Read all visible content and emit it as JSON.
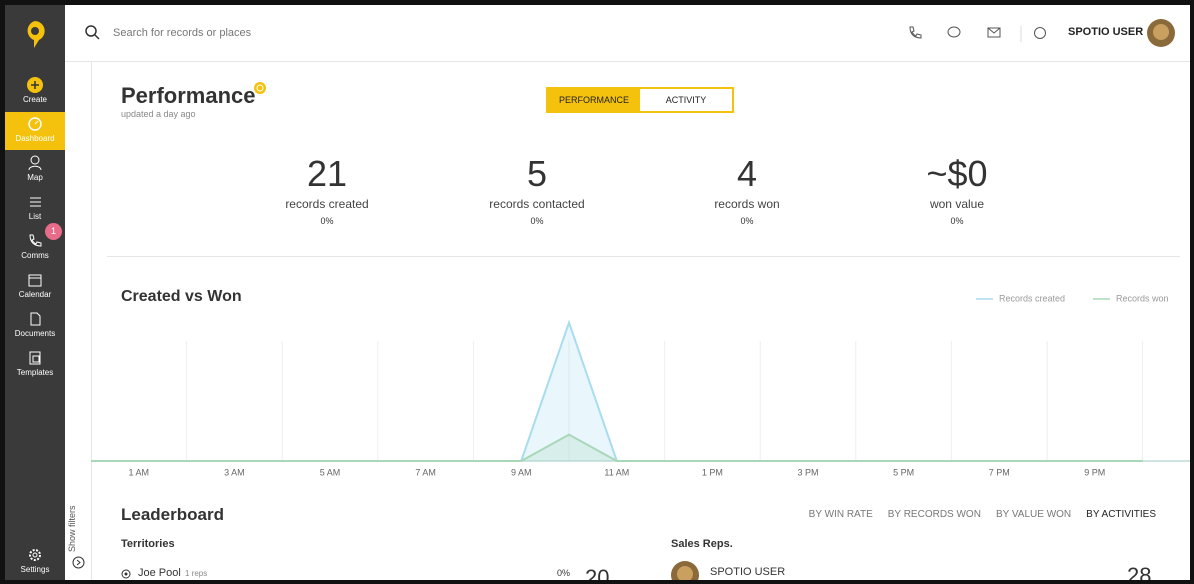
{
  "sidebar": {
    "items": [
      "Create",
      "Dashboard",
      "Map",
      "List",
      "Comms",
      "Calendar",
      "Documents",
      "Templates",
      "Settings"
    ],
    "comms_badge": "1"
  },
  "header": {
    "search_placeholder": "Search for records or places",
    "user": "SPOTIO USER"
  },
  "filters": "Show filters",
  "performance": {
    "title": "Performance",
    "updated": "updated a day ago",
    "tabs": [
      "PERFORMANCE",
      "ACTIVITY"
    ],
    "stats": [
      {
        "value": "21",
        "label": "records created",
        "change": "0%"
      },
      {
        "value": "5",
        "label": "records contacted",
        "change": "0%"
      },
      {
        "value": "4",
        "label": "records won",
        "change": "0%"
      },
      {
        "value": "~$0",
        "label": "won value",
        "change": "0%"
      }
    ]
  },
  "chart_data": {
    "type": "line",
    "title": "Created vs Won",
    "categories": [
      null,
      "1 AM",
      null,
      "3 AM",
      null,
      "5 AM",
      null,
      "7 AM",
      null,
      "9 AM",
      null,
      "11 AM",
      null,
      "1 PM",
      null,
      "3 PM",
      null,
      "5 PM",
      null,
      "7 PM",
      null,
      "9 PM",
      null
    ],
    "series": [
      {
        "name": "Records created",
        "color": "#a8dcee",
        "values": [
          0,
          0,
          0,
          0,
          0,
          0,
          0,
          0,
          0,
          0,
          21,
          0,
          0,
          0,
          0,
          0,
          0,
          0,
          0,
          0,
          0,
          0,
          0
        ]
      },
      {
        "name": "Records won",
        "color": "#a8d8b8",
        "values": [
          0,
          0,
          0,
          0,
          0,
          0,
          0,
          0,
          0,
          0,
          4,
          0,
          0,
          0,
          0,
          0,
          0,
          0,
          0,
          0,
          0,
          0,
          0
        ]
      }
    ],
    "ylim": [
      0,
      22
    ]
  },
  "leaderboard": {
    "title": "Leaderboard",
    "sorts": [
      "BY WIN RATE",
      "BY RECORDS WON",
      "BY VALUE WON",
      "BY ACTIVITIES"
    ],
    "territories": {
      "title": "Territories",
      "rows": [
        {
          "name": "Joe Pool",
          "reps": "1 reps",
          "pct": "0%",
          "count": "20"
        }
      ]
    },
    "sales_reps": {
      "title": "Sales Reps.",
      "rows": [
        {
          "name": "SPOTIO USER",
          "count": "28"
        }
      ]
    }
  }
}
